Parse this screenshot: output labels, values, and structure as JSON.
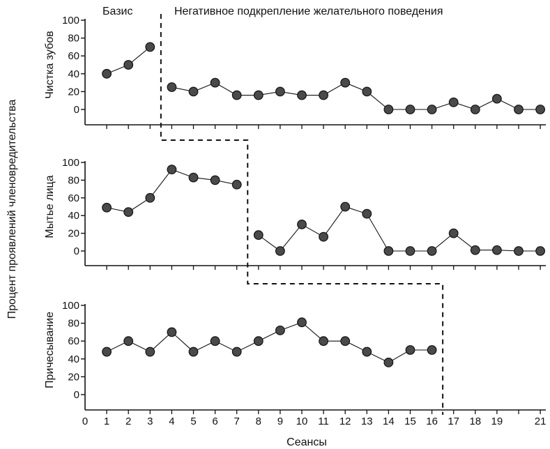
{
  "chart_data": {
    "type": "line",
    "layout": "multiple-baseline",
    "xlabel": "Сеансы",
    "ylabel": "Процент проявлений членовредительства",
    "phases": [
      "Базис",
      "Негативное подкрепление желательного поведения"
    ],
    "x_ticks": [
      "0",
      "1",
      "2",
      "3",
      "4",
      "5",
      "6",
      "7",
      "8",
      "9",
      "10",
      "11",
      "12",
      "13",
      "14",
      "15",
      "16",
      "17",
      "18",
      "19",
      "",
      "21"
    ],
    "y_ticks": [
      "0",
      "20",
      "40",
      "60",
      "80",
      "100"
    ],
    "ylim": [
      0,
      100
    ],
    "xlim": [
      0,
      21
    ],
    "panels": [
      {
        "name": "Чистка зубов",
        "phase_change_after": 3,
        "baseline": {
          "x": [
            1,
            2,
            3
          ],
          "y": [
            40,
            50,
            70
          ]
        },
        "treatment": {
          "x": [
            4,
            5,
            6,
            7,
            8,
            9,
            10,
            11,
            12,
            13,
            14,
            15,
            16,
            17,
            18,
            19,
            20,
            21
          ],
          "y": [
            25,
            20,
            30,
            16,
            16,
            20,
            16,
            16,
            30,
            20,
            0,
            0,
            0,
            8,
            0,
            12,
            0,
            0
          ]
        }
      },
      {
        "name": "Мытье лица",
        "phase_change_after": 7,
        "baseline": {
          "x": [
            1,
            2,
            3,
            4,
            5,
            6,
            7
          ],
          "y": [
            49,
            44,
            60,
            92,
            83,
            80,
            75
          ]
        },
        "treatment": {
          "x": [
            8,
            9,
            10,
            11,
            12,
            13,
            14,
            15,
            16,
            17,
            18,
            19,
            20,
            21
          ],
          "y": [
            18,
            0,
            30,
            16,
            50,
            42,
            0,
            0,
            0,
            20,
            1,
            1,
            0,
            0
          ]
        }
      },
      {
        "name": "Причесывание",
        "phase_change_after": 16,
        "baseline": {
          "x": [
            1,
            2,
            3,
            4,
            5,
            6,
            7,
            8,
            9,
            10,
            11,
            12,
            13,
            14,
            15,
            16
          ],
          "y": [
            48,
            60,
            48,
            70,
            48,
            60,
            48,
            60,
            72,
            81,
            60,
            60,
            48,
            36,
            50,
            50
          ]
        },
        "treatment": {
          "x": [],
          "y": []
        }
      }
    ]
  }
}
